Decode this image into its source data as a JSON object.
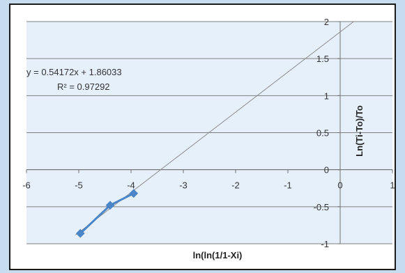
{
  "chart_data": {
    "type": "scatter",
    "xlabel": "ln(ln(1/1-Xi)",
    "ylabel": "Ln(Ti-To)/To",
    "xlim": [
      -6,
      1
    ],
    "ylim": [
      -1,
      2
    ],
    "x_ticks": [
      "-6",
      "-5",
      "-4",
      "-3",
      "-2",
      "-1",
      "0",
      "1"
    ],
    "y_ticks": [
      "-1",
      "-0.5",
      "0",
      "0.5",
      "1",
      "1.5",
      "2"
    ],
    "x_tick_values": [
      -6,
      -5,
      -4,
      -3,
      -2,
      -1,
      0,
      1
    ],
    "y_tick_values": [
      -1,
      -0.5,
      0,
      0.5,
      1,
      1.5,
      2
    ],
    "grid": true,
    "series": [
      {
        "x": [
          -4.97,
          -4.4,
          -3.95
        ],
        "y": [
          -0.86,
          -0.48,
          -0.32
        ],
        "color": "#4a86c8"
      }
    ],
    "trendline": {
      "slope": 0.54172,
      "intercept": 1.86033,
      "equation": "y = 0.54172x + 1.86033",
      "r_squared": "R² = 0.97292",
      "color": "#8c8c8c"
    },
    "plot_background": "#e6f0fa"
  }
}
